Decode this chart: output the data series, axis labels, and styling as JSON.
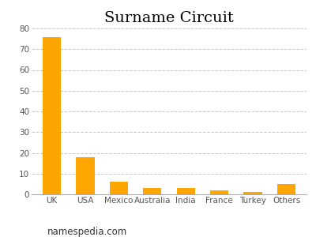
{
  "title": "Surname Circuit",
  "categories": [
    "UK",
    "USA",
    "Mexico",
    "Australia",
    "India",
    "France",
    "Turkey",
    "Others"
  ],
  "values": [
    76,
    18,
    6,
    3,
    3,
    2,
    1,
    5
  ],
  "bar_color": "#FFA500",
  "ylim": [
    0,
    80
  ],
  "yticks": [
    0,
    10,
    20,
    30,
    40,
    50,
    60,
    70,
    80
  ],
  "grid_color": "#c8c8c8",
  "background_color": "#ffffff",
  "title_fontsize": 14,
  "tick_fontsize": 7.5,
  "footer_text": "namespedia.com",
  "footer_fontsize": 8.5
}
